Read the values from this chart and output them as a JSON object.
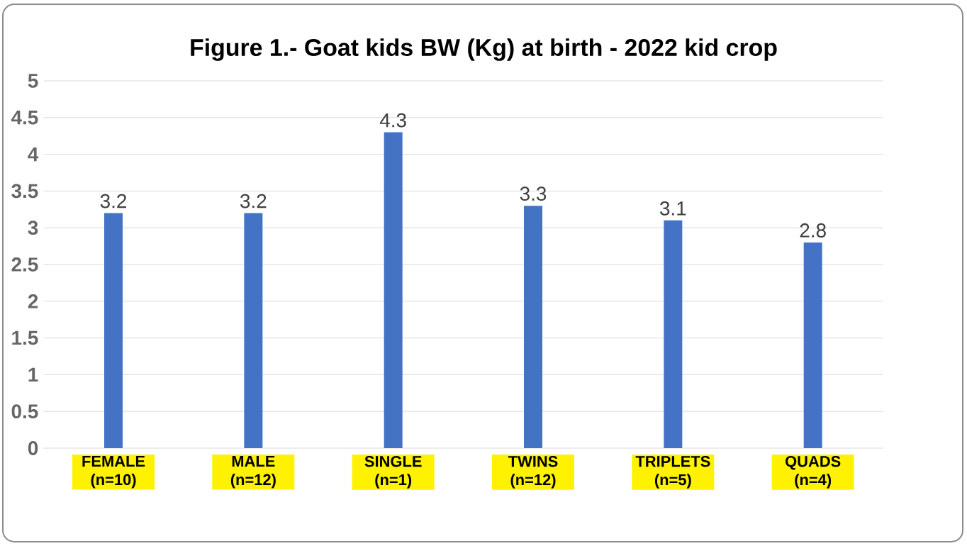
{
  "chart_data": {
    "type": "bar",
    "title": "Figure 1.- Goat kids BW (Kg) at birth - 2022 kid crop",
    "categories": [
      "FEMALE (n=10)",
      "MALE (n=12)",
      "SINGLE (n=1)",
      "TWINS (n=12)",
      "TRIPLETS (n=5)",
      "QUADS (n=4)"
    ],
    "values": [
      3.2,
      3.2,
      4.3,
      3.3,
      3.1,
      2.8
    ],
    "color": "#4472c4",
    "ylim": [
      0,
      5
    ],
    "yticks": [
      0,
      0.5,
      1,
      1.5,
      2,
      2.5,
      3,
      3.5,
      4,
      4.5,
      5
    ],
    "grid": "y",
    "data_labels": true
  }
}
